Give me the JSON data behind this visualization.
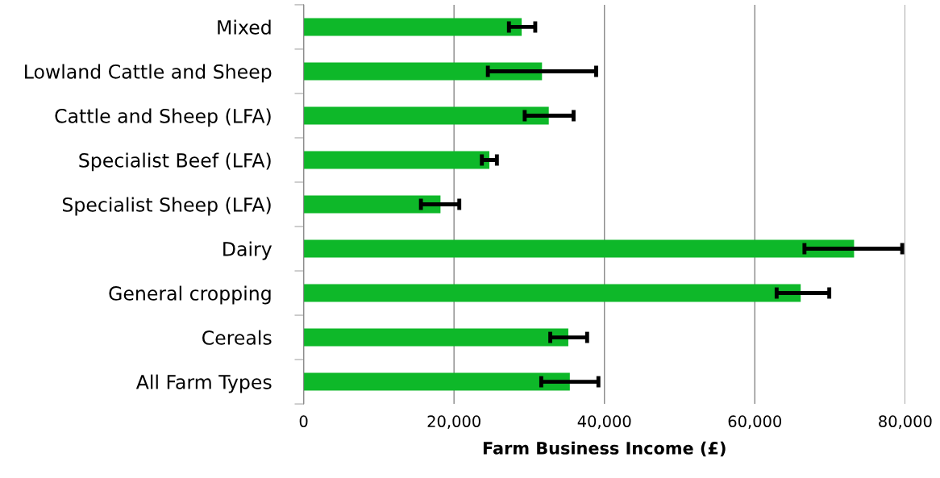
{
  "chart_data": {
    "type": "bar",
    "orientation": "horizontal",
    "xlabel": "Farm Business Income (£)",
    "categories": [
      "Mixed",
      "Lowland Cattle and Sheep",
      "Cattle and Sheep (LFA)",
      "Specialist Beef (LFA)",
      "Specialist Sheep (LFA)",
      "Dairy",
      "General cropping",
      "Cereals",
      "All Farm Types"
    ],
    "values": [
      29000,
      31700,
      32600,
      24700,
      18200,
      73200,
      66100,
      35200,
      35400
    ],
    "errors": [
      [
        27300,
        30800
      ],
      [
        24500,
        38900
      ],
      [
        29400,
        35900
      ],
      [
        23700,
        25700
      ],
      [
        15600,
        20700
      ],
      [
        66600,
        79600
      ],
      [
        62900,
        69900
      ],
      [
        32800,
        37700
      ],
      [
        31600,
        39200
      ]
    ],
    "color": "#0eb829",
    "xlim": [
      0,
      80000
    ],
    "xticks": [
      0,
      {
        "value": 20000,
        "label": "20,000"
      },
      {
        "value": 40000,
        "label": "40,000"
      },
      {
        "value": 60000,
        "label": "60,000"
      },
      {
        "value": 80000,
        "label": "80,000"
      }
    ],
    "grid": "x",
    "legend": false
  }
}
